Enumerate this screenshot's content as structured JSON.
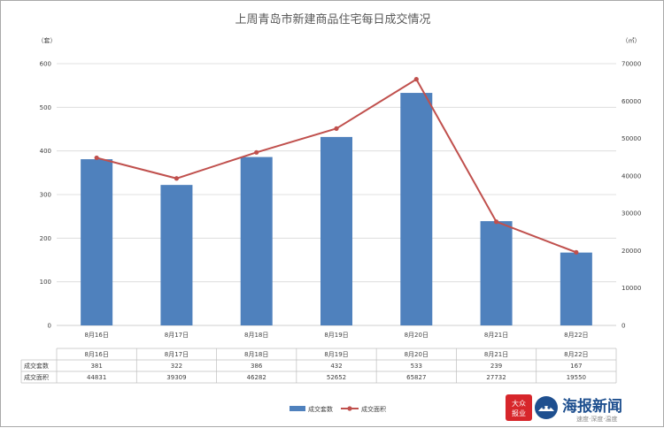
{
  "chart_data": {
    "type": "bar+line",
    "title": "上周青岛市新建商品住宅每日成交情况",
    "categories": [
      "8月16日",
      "8月17日",
      "8月18日",
      "8月19日",
      "8月20日",
      "8月21日",
      "8月22日"
    ],
    "series": [
      {
        "name": "成交套数",
        "type": "bar",
        "axis": "left",
        "values": [
          381,
          322,
          386,
          432,
          533,
          239,
          167
        ],
        "color": "#4f81bd"
      },
      {
        "name": "成交面积",
        "type": "line",
        "axis": "right",
        "values": [
          44831,
          39309,
          46282,
          52652,
          65827,
          27732,
          19550
        ],
        "color": "#c0504d"
      }
    ],
    "y_left": {
      "unit": "（套）",
      "ylim": [
        0,
        600
      ],
      "ticks": [
        0,
        100,
        200,
        300,
        400,
        500,
        600
      ]
    },
    "y_right": {
      "unit": "（㎡）",
      "ylim": [
        0,
        70000
      ],
      "ticks": [
        0,
        10000,
        20000,
        30000,
        40000,
        50000,
        60000,
        70000
      ]
    },
    "grid": true,
    "legend": "bottom"
  },
  "logo": {
    "mark_text": "大众报业",
    "brand_text": "海报新闻",
    "slogan": "速度·深度·温度",
    "colors": {
      "red": "#d7262b",
      "blue": "#1e4f8f"
    }
  }
}
